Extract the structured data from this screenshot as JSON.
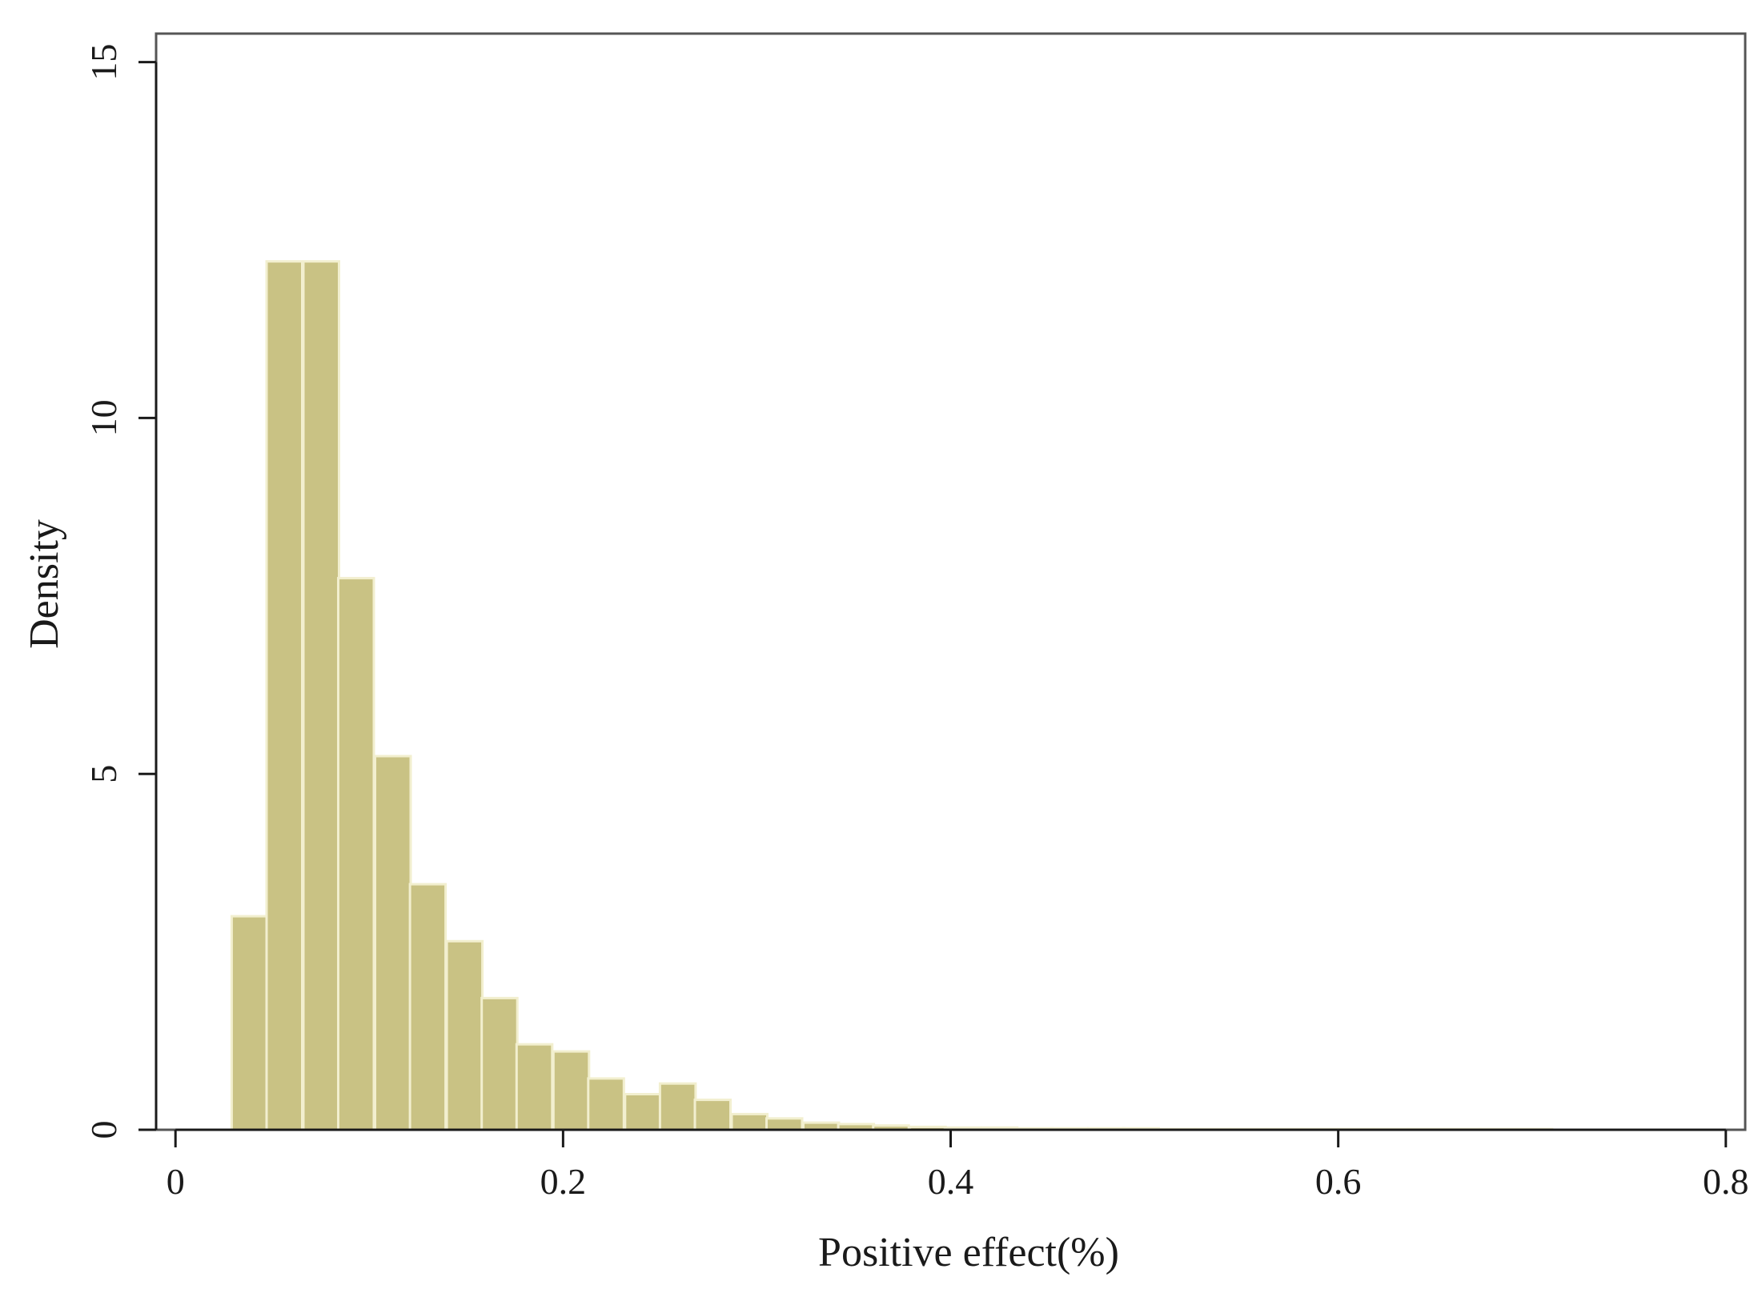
{
  "chart_data": {
    "type": "bar",
    "subtype": "histogram",
    "xlabel": "Positive effect(%)",
    "ylabel": "Density",
    "xlim": [
      -0.01,
      0.81
    ],
    "ylim": [
      0,
      15.4
    ],
    "xticks": [
      0,
      0.2,
      0.4,
      0.6,
      0.8
    ],
    "xtick_labels": [
      "0",
      "0.2",
      "0.4",
      "0.6",
      "0.8"
    ],
    "yticks": [
      0,
      5,
      10,
      15
    ],
    "ytick_labels": [
      "0",
      "5",
      "10",
      "15"
    ],
    "bin_width": 0.0184,
    "bins": [
      {
        "x0": 0.029,
        "value": 3.0
      },
      {
        "x0": 0.047,
        "value": 12.2
      },
      {
        "x0": 0.066,
        "value": 12.2
      },
      {
        "x0": 0.084,
        "value": 7.75
      },
      {
        "x0": 0.103,
        "value": 5.25
      },
      {
        "x0": 0.121,
        "value": 3.45
      },
      {
        "x0": 0.14,
        "value": 2.65
      },
      {
        "x0": 0.158,
        "value": 1.85
      },
      {
        "x0": 0.176,
        "value": 1.2
      },
      {
        "x0": 0.195,
        "value": 1.1
      },
      {
        "x0": 0.213,
        "value": 0.72
      },
      {
        "x0": 0.232,
        "value": 0.5
      },
      {
        "x0": 0.25,
        "value": 0.65
      },
      {
        "x0": 0.268,
        "value": 0.42
      },
      {
        "x0": 0.287,
        "value": 0.22
      },
      {
        "x0": 0.305,
        "value": 0.16
      },
      {
        "x0": 0.324,
        "value": 0.1
      },
      {
        "x0": 0.342,
        "value": 0.08
      },
      {
        "x0": 0.36,
        "value": 0.06
      },
      {
        "x0": 0.379,
        "value": 0.04
      },
      {
        "x0": 0.397,
        "value": 0.03
      },
      {
        "x0": 0.416,
        "value": 0.03
      },
      {
        "x0": 0.434,
        "value": 0.02
      },
      {
        "x0": 0.452,
        "value": 0.02
      },
      {
        "x0": 0.471,
        "value": 0.02
      },
      {
        "x0": 0.489,
        "value": 0.02
      },
      {
        "x0": 0.508,
        "value": 0.01
      },
      {
        "x0": 0.526,
        "value": 0.01
      },
      {
        "x0": 0.544,
        "value": 0.01
      },
      {
        "x0": 0.563,
        "value": 0.01
      },
      {
        "x0": 0.581,
        "value": 0.01
      },
      {
        "x0": 0.6,
        "value": 0.01
      },
      {
        "x0": 0.618,
        "value": 0.01
      },
      {
        "x0": 0.636,
        "value": 0.01
      },
      {
        "x0": 0.655,
        "value": 0.01
      },
      {
        "x0": 0.673,
        "value": 0.01
      },
      {
        "x0": 0.692,
        "value": 0.01
      }
    ],
    "grid": false,
    "legend": "none",
    "colors": {
      "bar_fill": "#c9c284",
      "bar_stroke": "#f2efcf",
      "axis": "#1a1a1a",
      "frame": "#555555"
    }
  }
}
